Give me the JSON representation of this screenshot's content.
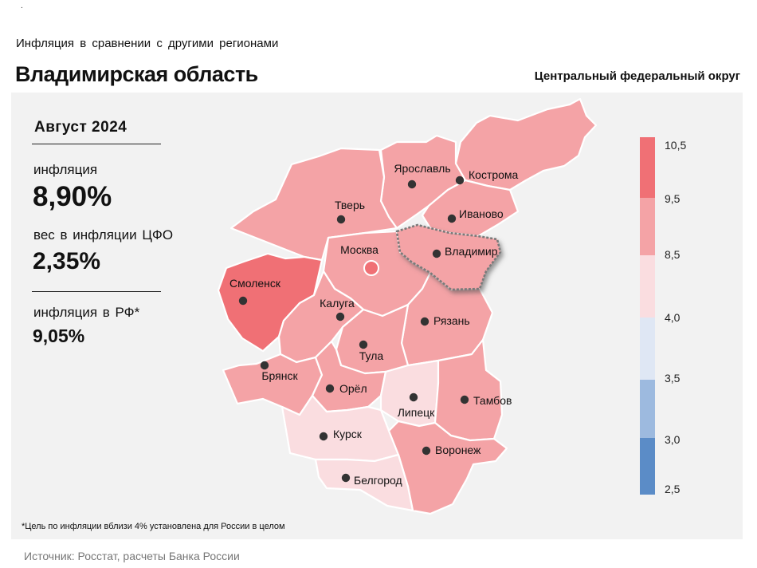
{
  "header": {
    "dot": ".",
    "subtitle": "Инфляция  в сравнении  с другими  регионами",
    "title": "Владимирская область",
    "district": "Центральный федеральный округ"
  },
  "stats": {
    "period": "Август 2024",
    "inflation_label": "инфляция",
    "inflation_value": "8,90%",
    "weight_label": "вес в инфляции ЦФО",
    "weight_value": "2,35%",
    "russia_label": "инфляция  в РФ*",
    "russia_value": "9,05%"
  },
  "footnote": "*Цель по инфляции вблизи 4% установлена для России в целом",
  "source": "Источник: Росстат, расчеты Банка России",
  "legend": {
    "labels": [
      "10,5",
      "9,5",
      "8,5",
      "4,0",
      "3,5",
      "3,0",
      "2,5"
    ],
    "bins": [
      {
        "from": 9.5,
        "to": 10.5,
        "color": "#f07075"
      },
      {
        "from": 8.5,
        "to": 9.5,
        "color": "#f4a3a6"
      },
      {
        "from": 4.0,
        "to": 8.5,
        "color": "#fadde0"
      },
      {
        "from": 3.5,
        "to": 4.0,
        "color": "#dfe7f4"
      },
      {
        "from": 3.0,
        "to": 3.5,
        "color": "#9dbadf"
      },
      {
        "from": 2.5,
        "to": 3.0,
        "color": "#5b8cc7"
      }
    ]
  },
  "map": {
    "highlight": "Владимир",
    "regions": [
      {
        "key": "kostroma",
        "label": "Кострома",
        "color": "#f4a3a6"
      },
      {
        "key": "yaroslavl",
        "label": "Ярославль",
        "color": "#f4a3a6"
      },
      {
        "key": "tver",
        "label": "Тверь",
        "color": "#f4a3a6"
      },
      {
        "key": "ivanovo",
        "label": "Иваново",
        "color": "#f4a3a6"
      },
      {
        "key": "vladimir",
        "label": "Владимир",
        "color": "#f4a3a6"
      },
      {
        "key": "moscow",
        "label": "Москва",
        "color": "#f4a3a6"
      },
      {
        "key": "smolensk",
        "label": "Смоленск",
        "color": "#f07075"
      },
      {
        "key": "kaluga",
        "label": "Калуга",
        "color": "#f4a3a6"
      },
      {
        "key": "ryazan",
        "label": "Рязань",
        "color": "#f4a3a6"
      },
      {
        "key": "tula",
        "label": "Тула",
        "color": "#f4a3a6"
      },
      {
        "key": "bryansk",
        "label": "Брянск",
        "color": "#f4a3a6"
      },
      {
        "key": "orel",
        "label": "Орёл",
        "color": "#f4a3a6"
      },
      {
        "key": "lipetsk",
        "label": "Липецк",
        "color": "#fadde0"
      },
      {
        "key": "tambov",
        "label": "Тамбов",
        "color": "#f4a3a6"
      },
      {
        "key": "kursk",
        "label": "Курск",
        "color": "#fadde0"
      },
      {
        "key": "voronezh",
        "label": "Воронеж",
        "color": "#f4a3a6"
      },
      {
        "key": "belgorod",
        "label": "Белгород",
        "color": "#fadde0"
      }
    ],
    "moscow_city_color": "#f07075"
  }
}
